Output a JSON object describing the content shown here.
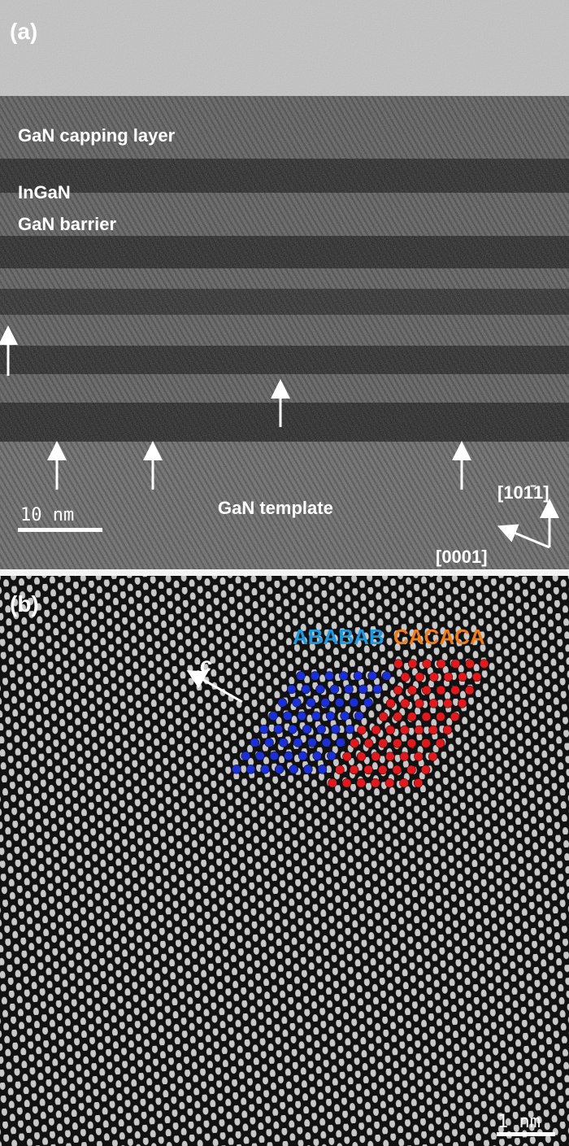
{
  "panel_a": {
    "label": "(a)",
    "layers": {
      "capping": "GaN capping layer",
      "ingan": "InGaN",
      "barrier": "GaN barrier",
      "template": "GaN template"
    },
    "scale_bar": "10 nm",
    "directions": {
      "up": "[101̄1]",
      "left": "[0001]"
    }
  },
  "panel_b": {
    "label": "(b)",
    "stacking_ab": "ABABAB",
    "stacking_ca": "CACACA",
    "axis": "c",
    "scale_bar": "1 nm"
  }
}
